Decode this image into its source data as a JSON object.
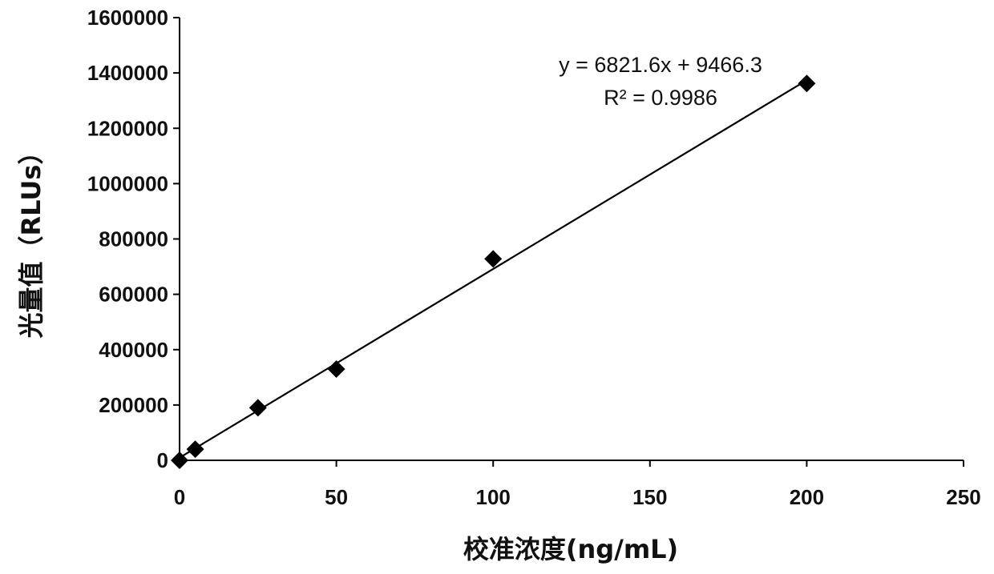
{
  "chart_data": {
    "type": "scatter",
    "title": "",
    "xlabel": "校准浓度(ng/mL)",
    "ylabel": "光量值（RLUs）",
    "xlim": [
      0,
      250
    ],
    "ylim": [
      0,
      1600000
    ],
    "x_ticks": [
      "0",
      "50",
      "100",
      "150",
      "200",
      "250"
    ],
    "y_ticks": [
      "0",
      "200000",
      "400000",
      "600000",
      "800000",
      "1000000",
      "1200000",
      "1400000",
      "1600000"
    ],
    "grid": false,
    "legend": "none",
    "series": [
      {
        "marker": "diamond",
        "color": "#000000",
        "points": [
          {
            "x": 0,
            "y": 0
          },
          {
            "x": 5,
            "y": 40000
          },
          {
            "x": 25,
            "y": 190000
          },
          {
            "x": 50,
            "y": 330000
          },
          {
            "x": 100,
            "y": 728000
          },
          {
            "x": 200,
            "y": 1362000
          }
        ]
      }
    ],
    "trendline": {
      "type": "linear",
      "slope": 6821.6,
      "intercept": 9466.3,
      "x_range": [
        0,
        200
      ],
      "color": "#000000"
    },
    "annotations": {
      "equation": "y = 6821.6x + 9466.3",
      "r_squared": "R² = 0.9986"
    }
  }
}
